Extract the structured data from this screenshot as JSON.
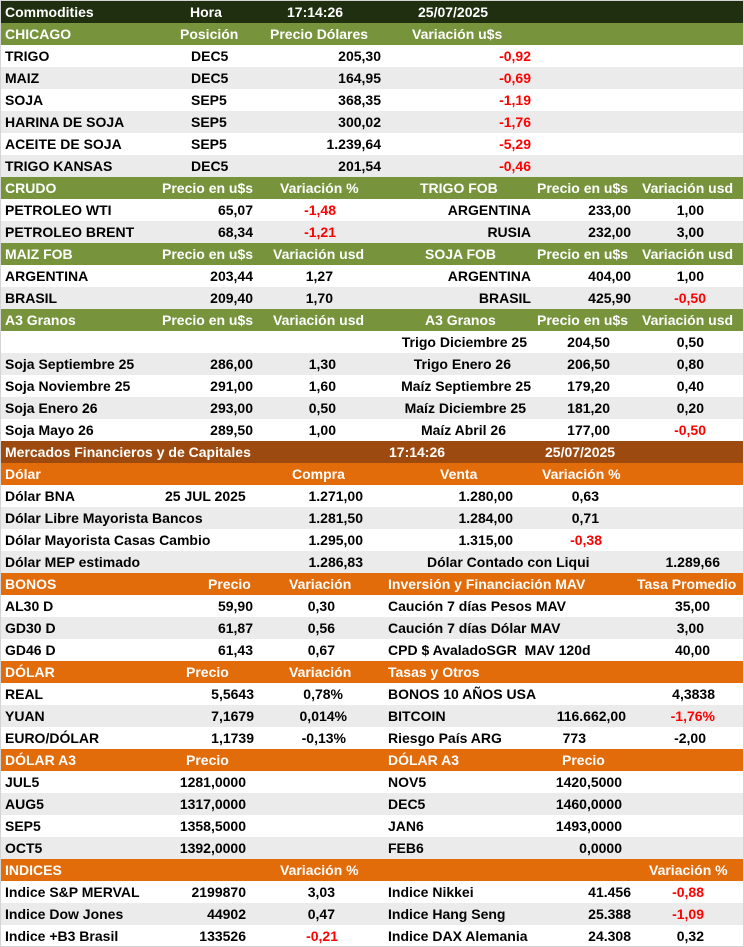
{
  "header": {
    "title": "Commodities",
    "hora_label": "Hora",
    "time": "17:14:26",
    "date": "25/07/2025"
  },
  "chicago": {
    "title": "CHICAGO",
    "col_pos": "Posición",
    "col_price": "Precio Dólares",
    "col_var": "Variación u$s",
    "rows": [
      {
        "name": "TRIGO",
        "pos": "DEC5",
        "price": "205,30",
        "var": "-0,92"
      },
      {
        "name": "MAIZ",
        "pos": "DEC5",
        "price": "164,95",
        "var": "-0,69"
      },
      {
        "name": "SOJA",
        "pos": "SEP5",
        "price": "368,35",
        "var": "-1,19"
      },
      {
        "name": "HARINA DE SOJA",
        "pos": "SEP5",
        "price": "300,02",
        "var": "-1,76"
      },
      {
        "name": "ACEITE DE SOJA",
        "pos": "SEP5",
        "price": "1.239,64",
        "var": "-5,29"
      },
      {
        "name": "TRIGO KANSAS",
        "pos": "DEC5",
        "price": "201,54",
        "var": "-0,46"
      }
    ]
  },
  "crudo": {
    "title": "CRUDO",
    "col_price": "Precio en u$s",
    "col_var": "Variación %",
    "rows": [
      {
        "name": "PETROLEO WTI",
        "price": "65,07",
        "var": "-1,48"
      },
      {
        "name": "PETROLEO BRENT",
        "price": "68,34",
        "var": "-1,21"
      }
    ]
  },
  "trigo_fob": {
    "title": "TRIGO FOB",
    "col_price": "Precio en u$s",
    "col_var": "Variación usd",
    "rows": [
      {
        "name": "ARGENTINA",
        "price": "233,00",
        "var": "1,00"
      },
      {
        "name": "RUSIA",
        "price": "232,00",
        "var": "3,00"
      }
    ]
  },
  "maiz_fob": {
    "title": "MAIZ FOB",
    "col_price": "Precio en u$s",
    "col_var": "Variación usd",
    "rows": [
      {
        "name": "ARGENTINA",
        "price": "203,44",
        "var": "1,27"
      },
      {
        "name": "BRASIL",
        "price": "209,40",
        "var": "1,70"
      }
    ]
  },
  "soja_fob": {
    "title": "SOJA FOB",
    "col_price": "Precio en u$s",
    "col_var": "Variación usd",
    "rows": [
      {
        "name": "ARGENTINA",
        "price": "404,00",
        "var": "1,00"
      },
      {
        "name": "BRASIL",
        "price": "425,90",
        "var": "-0,50"
      }
    ]
  },
  "a3_left": {
    "title": "A3 Granos",
    "col_price": "Precio en u$s",
    "col_var": "Variación usd",
    "rows": [
      {
        "name": "Soja Septiembre 25",
        "price": "286,00",
        "var": "1,30"
      },
      {
        "name": "Soja Noviembre 25",
        "price": "291,00",
        "var": "1,60"
      },
      {
        "name": "Soja Enero 26",
        "price": "293,00",
        "var": "0,50"
      },
      {
        "name": "Soja Mayo 26",
        "price": "289,50",
        "var": "1,00"
      }
    ]
  },
  "a3_right": {
    "title": "A3 Granos",
    "col_price": "Precio en u$s",
    "col_var": "Variación usd",
    "rows": [
      {
        "name": "Trigo Diciembre 25",
        "price": "204,50",
        "var": "0,50"
      },
      {
        "name": "Trigo Enero 26",
        "price": "206,50",
        "var": "0,80"
      },
      {
        "name": "Maíz Septiembre 25",
        "price": "179,20",
        "var": "0,40"
      },
      {
        "name": "Maíz Diciembre 25",
        "price": "181,20",
        "var": "0,20"
      },
      {
        "name": "Maíz Abril 26",
        "price": "177,00",
        "var": "-0,50"
      }
    ]
  },
  "mercados": {
    "title": "Mercados Financieros y de Capitales",
    "time": "17:14:26",
    "date": "25/07/2025"
  },
  "dolar": {
    "title": "Dólar",
    "col_buy": "Compra",
    "col_sell": "Venta",
    "col_var": "Variación %",
    "rows": [
      {
        "name": "Dólar BNA",
        "date": "25 JUL 2025",
        "buy": "1.271,00",
        "sell": "1.280,00",
        "var": "0,63"
      },
      {
        "name": "Dólar Libre Mayorista Bancos",
        "date": "",
        "buy": "1.281,50",
        "sell": "1.284,00",
        "var": "0,71"
      },
      {
        "name": "Dólar Mayorista Casas Cambio",
        "date": "",
        "buy": "1.295,00",
        "sell": "1.315,00",
        "var": "-0,38"
      }
    ],
    "mep_label": "Dólar MEP estimado",
    "mep_value": "1.286,83",
    "ccl_label": "Dólar Contado con Liqui",
    "ccl_value": "1.289,66"
  },
  "bonos": {
    "title": "BONOS",
    "col_price": "Precio",
    "col_var": "Variación",
    "rows": [
      {
        "name": "AL30 D",
        "price": "59,90",
        "var": "0,30"
      },
      {
        "name": "GD30 D",
        "price": "61,87",
        "var": "0,56"
      },
      {
        "name": "GD46 D",
        "price": "61,43",
        "var": "0,67"
      }
    ]
  },
  "mav": {
    "title": "Inversión y Financiación MAV",
    "col_rate": "Tasa Promedio",
    "rows": [
      {
        "name": "Caución 7 días Pesos MAV",
        "rate": "35,00"
      },
      {
        "name": "Caución 7 días Dólar MAV",
        "rate": "3,00"
      },
      {
        "name": "CPD $ AvaladoSGR  MAV 120d",
        "rate": "40,00"
      }
    ]
  },
  "dolar_fx": {
    "title": "DÓLAR",
    "col_price": "Precio",
    "col_var": "Variación",
    "rows": [
      {
        "name": "REAL",
        "price": "5,5643",
        "var": "0,78%"
      },
      {
        "name": "YUAN",
        "price": "7,1679",
        "var": "0,014%"
      },
      {
        "name": "EURO/DÓLAR",
        "price": "1,1739",
        "var": "-0,13%"
      }
    ]
  },
  "tasas": {
    "title": "Tasas y Otros",
    "rows": [
      {
        "name": "BONOS 10 AÑOS USA",
        "value": "",
        "value2": "4,3838"
      },
      {
        "name": "BITCOIN",
        "value": "116.662,00",
        "value2": "-1,76%"
      },
      {
        "name": "Riesgo País ARG",
        "value": "773",
        "value2": "-2,00"
      }
    ]
  },
  "dolar_a3_left": {
    "title": "DÓLAR A3",
    "col_price": "Precio",
    "rows": [
      {
        "name": "JUL5",
        "price": "1281,0000"
      },
      {
        "name": "AUG5",
        "price": "1317,0000"
      },
      {
        "name": "SEP5",
        "price": "1358,5000"
      },
      {
        "name": "OCT5",
        "price": "1392,0000"
      }
    ]
  },
  "dolar_a3_right": {
    "title": "DÓLAR A3",
    "col_price": "Precio",
    "rows": [
      {
        "name": "NOV5",
        "price": "1420,5000"
      },
      {
        "name": "DEC5",
        "price": "1460,0000"
      },
      {
        "name": "JAN6",
        "price": "1493,0000"
      },
      {
        "name": "FEB6",
        "price": "0,0000"
      }
    ]
  },
  "indices": {
    "title": "INDICES",
    "col_var_left": "Variación %",
    "col_var_right": "Variación %",
    "left": [
      {
        "name": "Indice S&P MERVAL",
        "value": "2199870",
        "var": "3,03"
      },
      {
        "name": "Indice Dow Jones",
        "value": "44902",
        "var": "0,47"
      },
      {
        "name": "Indice +B3 Brasil",
        "value": "133526",
        "var": "-0,21"
      }
    ],
    "right": [
      {
        "name": "Indice Nikkei",
        "value": "41.456",
        "var": "-0,88"
      },
      {
        "name": "Indice Hang Seng",
        "value": "25.388",
        "var": "-1,09"
      },
      {
        "name": "Indice DAX Alemania",
        "value": "24.308",
        "var": "0,32"
      }
    ]
  }
}
